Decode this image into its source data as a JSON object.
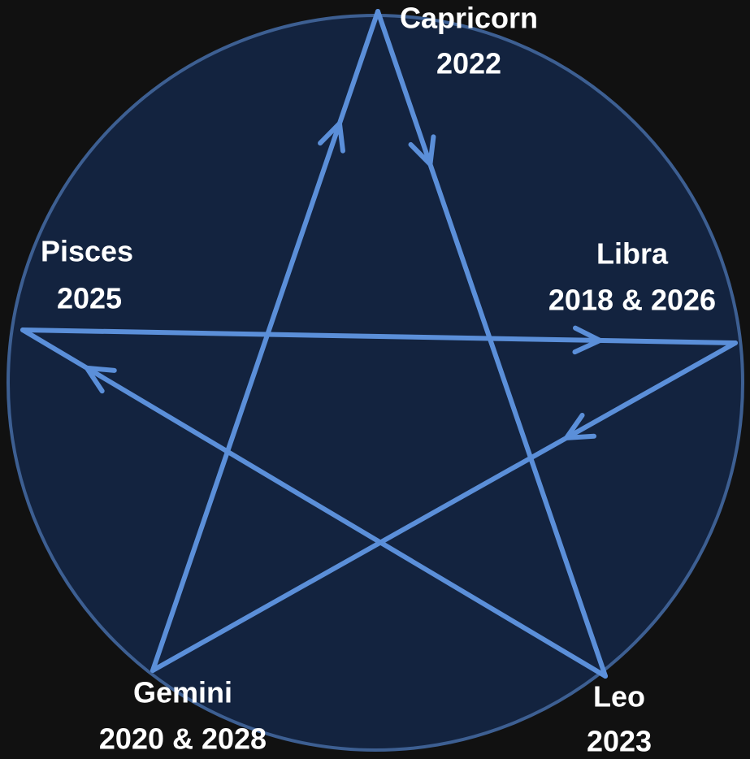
{
  "nodes": [
    {
      "name": "Capricorn",
      "years": "2022"
    },
    {
      "name": "Libra",
      "years": "2018 & 2026"
    },
    {
      "name": "Leo",
      "years": "2023"
    },
    {
      "name": "Gemini",
      "years": "2020 & 2028"
    },
    {
      "name": "Pisces",
      "years": "2025"
    }
  ]
}
